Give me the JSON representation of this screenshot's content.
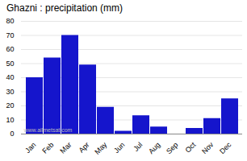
{
  "chart_data": {
    "type": "bar",
    "title": "Ghazni : precipitation (mm)",
    "categories": [
      "Jan",
      "Feb",
      "Mar",
      "Apr",
      "May",
      "Jun",
      "Jul",
      "Aug",
      "Sep",
      "Oct",
      "Nov",
      "Dec"
    ],
    "values": [
      40,
      54,
      70,
      49,
      19,
      2,
      13,
      5,
      0,
      4,
      11,
      25
    ],
    "color": "#1515cc",
    "ylim": [
      0,
      80
    ],
    "yticks": [
      0,
      10,
      20,
      30,
      40,
      50,
      60,
      70,
      80
    ],
    "grid": true,
    "annotations": [
      "www.allmetsat.com"
    ]
  }
}
